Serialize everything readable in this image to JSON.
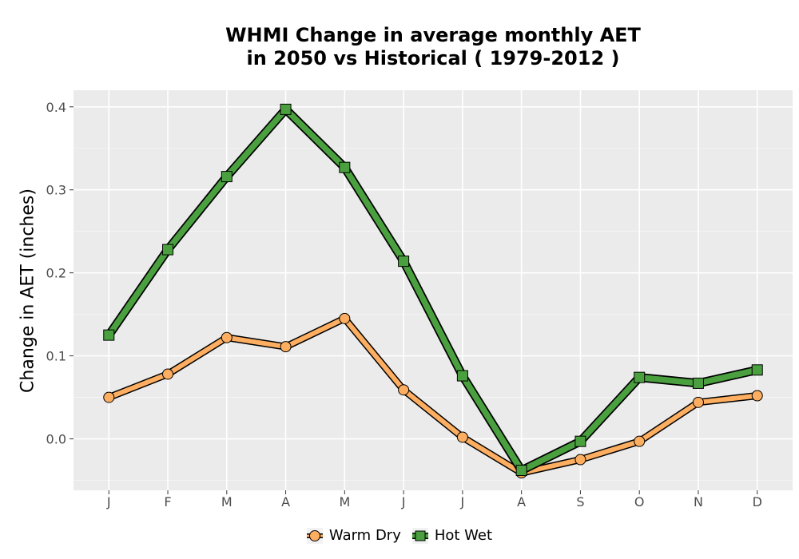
{
  "chart_data": {
    "type": "line",
    "title_line1": "WHMI  Change in average monthly AET",
    "title_line2": "in 2050 vs Historical ( 1979-2012 )",
    "xlabel": "",
    "ylabel": "Change in AET (inches)",
    "categories": [
      "J",
      "F",
      "M",
      "A",
      "M",
      "J",
      "J",
      "A",
      "S",
      "O",
      "N",
      "D"
    ],
    "yticks": [
      "0.0",
      "0.1",
      "0.2",
      "0.3",
      "0.4"
    ],
    "ylim": [
      -0.062,
      0.42
    ],
    "grid": true,
    "legend_position": "bottom",
    "series": [
      {
        "name": "Warm Dry",
        "marker": "circle",
        "color": "#fdae61",
        "values": [
          0.05,
          0.078,
          0.122,
          0.111,
          0.145,
          0.059,
          0.002,
          -0.041,
          -0.025,
          -0.003,
          0.044,
          0.052
        ]
      },
      {
        "name": "Hot Wet",
        "marker": "square",
        "color": "#4aa03f",
        "values": [
          0.125,
          0.228,
          0.316,
          0.397,
          0.327,
          0.214,
          0.076,
          -0.038,
          -0.003,
          0.074,
          0.067,
          0.083
        ]
      }
    ]
  }
}
